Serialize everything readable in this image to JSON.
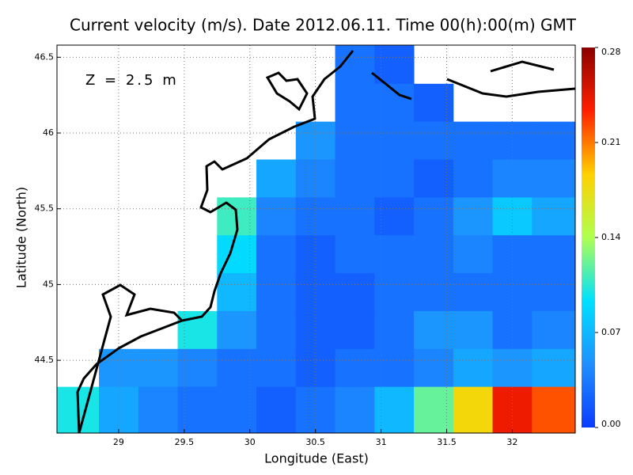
{
  "chart_data": {
    "type": "heatmap",
    "title": "Current velocity (m/s). Date 2012.06.11. Time 00(h):00(m) GMT",
    "annotation": "Z = 2.5 m",
    "x_label": "Longitude (East)",
    "y_label": "Latitude (North)",
    "xlim": [
      28.53,
      32.48
    ],
    "ylim": [
      44.02,
      46.58
    ],
    "xticks": [
      29,
      29.5,
      30,
      30.5,
      31,
      31.5,
      32
    ],
    "yticks": [
      44.5,
      45,
      45.5,
      46,
      46.5
    ],
    "grid": true,
    "colorbar_lim": [
      0,
      0.28
    ],
    "colorbar_ticks": [
      {
        "value": 0,
        "label": "0.00"
      },
      {
        "value": 0.07,
        "label": "0.07"
      },
      {
        "value": 0.14,
        "label": "0.14"
      },
      {
        "value": 0.21,
        "label": "0.21"
      },
      {
        "value": 0.28,
        "label": "0.28"
      }
    ],
    "colormap": [
      "#0a3cff",
      "#1e90ff",
      "#00e0ff",
      "#b0ff50",
      "#ffd000",
      "#ff2000",
      "#8b0000"
    ],
    "x": [
      28.7,
      29.0,
      29.3,
      29.6,
      29.9,
      30.2,
      30.5,
      30.8,
      31.1,
      31.4,
      31.7,
      32.0,
      32.3
    ],
    "y": [
      46.45,
      46.2,
      45.95,
      45.7,
      45.45,
      45.2,
      44.95,
      44.7,
      44.45,
      44.2
    ],
    "values": [
      [
        null,
        null,
        null,
        null,
        null,
        null,
        null,
        0.03,
        0.02,
        null,
        null,
        null,
        null
      ],
      [
        null,
        null,
        null,
        null,
        null,
        null,
        null,
        0.03,
        0.03,
        0.02,
        null,
        null,
        null
      ],
      [
        null,
        null,
        null,
        null,
        null,
        null,
        0.05,
        0.03,
        0.03,
        0.03,
        0.03,
        0.03,
        0.03
      ],
      [
        null,
        null,
        null,
        null,
        null,
        0.06,
        0.04,
        0.03,
        0.03,
        0.02,
        0.03,
        0.04,
        0.04
      ],
      [
        null,
        null,
        null,
        null,
        0.11,
        0.04,
        0.03,
        0.03,
        0.02,
        0.03,
        0.05,
        0.08,
        0.06
      ],
      [
        null,
        null,
        null,
        null,
        0.09,
        0.03,
        0.02,
        0.03,
        0.03,
        0.03,
        0.04,
        0.03,
        0.03
      ],
      [
        null,
        null,
        null,
        null,
        0.07,
        0.03,
        0.02,
        0.02,
        0.03,
        0.03,
        0.03,
        0.03,
        0.03
      ],
      [
        null,
        null,
        null,
        0.1,
        0.05,
        0.03,
        0.02,
        0.02,
        0.03,
        0.05,
        0.05,
        0.03,
        0.04
      ],
      [
        null,
        0.05,
        0.05,
        0.04,
        0.03,
        0.03,
        0.02,
        0.03,
        0.03,
        0.04,
        0.06,
        0.05,
        0.06
      ],
      [
        0.1,
        0.06,
        0.04,
        0.03,
        0.03,
        0.02,
        0.03,
        0.04,
        0.07,
        0.12,
        0.18,
        0.24,
        0.22
      ]
    ]
  }
}
